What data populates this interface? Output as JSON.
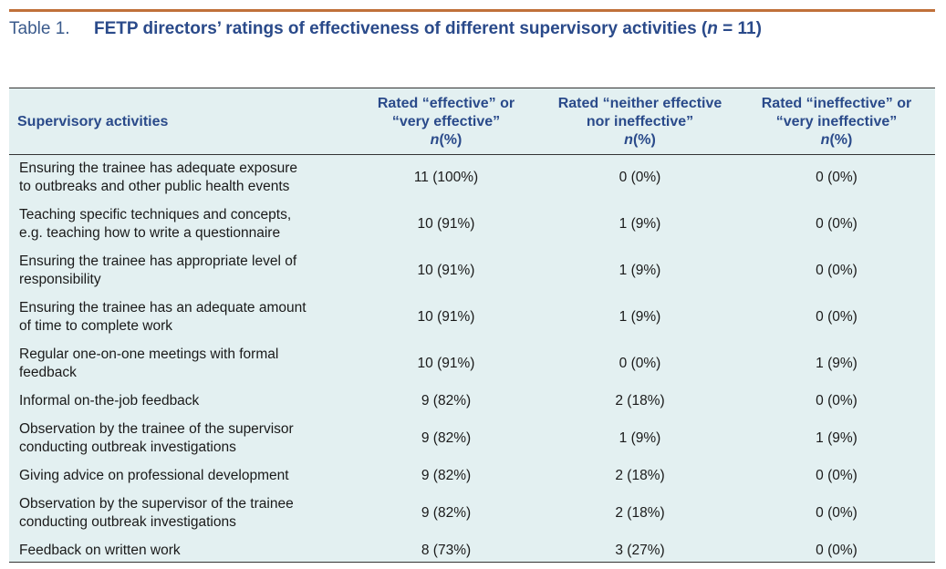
{
  "caption": {
    "label": "Table 1.",
    "title_prefix": "FETP directors’ ratings of effectiveness of different supervisory activities (",
    "title_n": "n",
    "title_suffix": " = 11)"
  },
  "header": {
    "col1": "Supervisory activities",
    "col2_line1": "Rated “effective” or",
    "col2_line2": "“very effective”",
    "col3_line1": "Rated “neither effective",
    "col3_line2": "nor ineffective”",
    "col4_line1": "Rated “ineffective” or",
    "col4_line2": "“very ineffective”",
    "unit_n": "n",
    "unit_pct": "(%)"
  },
  "rows": [
    {
      "line1": "Ensuring the trainee has adequate exposure",
      "line2": "to outbreaks and other public health events",
      "effective": "11 (100%)",
      "neither": "0 (0%)",
      "ineffective": "0 (0%)"
    },
    {
      "line1": "Teaching specific techniques and concepts,",
      "line2": "e.g. teaching how to write a questionnaire",
      "effective": "10 (91%)",
      "neither": "1 (9%)",
      "ineffective": "0 (0%)"
    },
    {
      "line1": "Ensuring the trainee has appropriate level of",
      "line2": "responsibility",
      "effective": "10 (91%)",
      "neither": "1 (9%)",
      "ineffective": "0 (0%)"
    },
    {
      "line1": "Ensuring the trainee has an adequate amount",
      "line2": "of time to complete work",
      "effective": "10 (91%)",
      "neither": "1 (9%)",
      "ineffective": "0 (0%)"
    },
    {
      "line1": "Regular one-on-one meetings with formal",
      "line2": "feedback",
      "effective": "10 (91%)",
      "neither": "0 (0%)",
      "ineffective": "1 (9%)"
    },
    {
      "line1": "Informal on-the-job feedback",
      "line2": "",
      "effective": "9 (82%)",
      "neither": "2 (18%)",
      "ineffective": "0 (0%)"
    },
    {
      "line1": "Observation by the trainee of the supervisor",
      "line2": "conducting outbreak investigations",
      "effective": "9 (82%)",
      "neither": "1 (9%)",
      "ineffective": "1 (9%)"
    },
    {
      "line1": "Giving advice on professional development",
      "line2": "",
      "effective": "9 (82%)",
      "neither": "2 (18%)",
      "ineffective": "0 (0%)"
    },
    {
      "line1": "Observation by the supervisor of the trainee",
      "line2": "conducting outbreak investigations",
      "effective": "9 (82%)",
      "neither": "2 (18%)",
      "ineffective": "0 (0%)"
    },
    {
      "line1": "Feedback on written work",
      "line2": "",
      "effective": "8 (73%)",
      "neither": "3 (27%)",
      "ineffective": "0 (0%)"
    }
  ]
}
